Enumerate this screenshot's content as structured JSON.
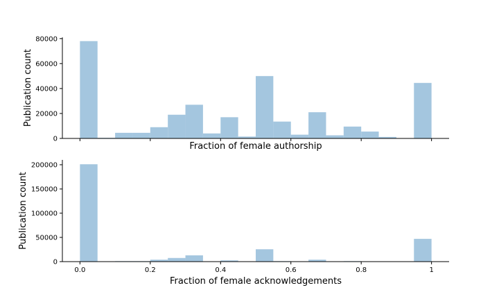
{
  "chart_data": [
    {
      "type": "bar",
      "title": "",
      "xlabel": "Fraction of female authorship",
      "ylabel": "Publication count",
      "xlim": [
        -0.05,
        1.05
      ],
      "ylim": [
        0,
        81000
      ],
      "bin_width": 0.05,
      "x": [
        0.0,
        0.05,
        0.1,
        0.15,
        0.2,
        0.25,
        0.3,
        0.35,
        0.4,
        0.45,
        0.5,
        0.55,
        0.6,
        0.65,
        0.7,
        0.75,
        0.8,
        0.85,
        0.9,
        0.95
      ],
      "values": [
        78000,
        500,
        4500,
        4500,
        9000,
        19000,
        27000,
        4000,
        17000,
        1500,
        50000,
        13500,
        3000,
        21000,
        2500,
        9500,
        5500,
        1200,
        0,
        44500
      ],
      "yticks": [
        0,
        20000,
        40000,
        60000,
        80000
      ],
      "xticks": [
        0.0,
        0.2,
        0.4,
        0.6,
        0.8,
        1.0
      ],
      "show_xtick_labels": false,
      "grid": false
    },
    {
      "type": "bar",
      "title": "",
      "xlabel": "Fraction of female acknowledgements",
      "ylabel": "Publication count",
      "xlim": [
        -0.05,
        1.05
      ],
      "ylim": [
        0,
        210000
      ],
      "bin_width": 0.05,
      "x": [
        0.0,
        0.05,
        0.1,
        0.15,
        0.2,
        0.25,
        0.3,
        0.35,
        0.4,
        0.45,
        0.5,
        0.55,
        0.6,
        0.65,
        0.7,
        0.75,
        0.8,
        0.85,
        0.9,
        0.95
      ],
      "values": [
        201000,
        0,
        1000,
        1000,
        4000,
        7500,
        13000,
        0,
        2500,
        0,
        25500,
        1000,
        0,
        4000,
        0,
        1000,
        0,
        0,
        0,
        47000
      ],
      "yticks": [
        0,
        50000,
        100000,
        150000,
        200000
      ],
      "xticks": [
        0.0,
        0.2,
        0.4,
        0.6,
        0.8,
        1.0
      ],
      "show_xtick_labels": true,
      "grid": false
    }
  ]
}
